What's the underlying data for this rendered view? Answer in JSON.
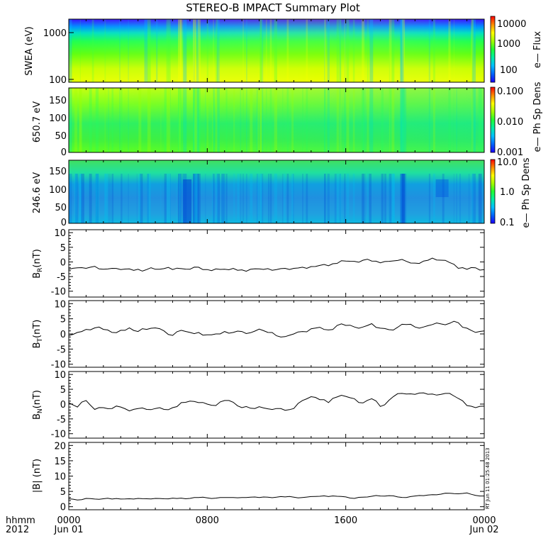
{
  "title": "STEREO-B IMPACT Summary Plot",
  "time_axis": {
    "corner_label_top": "hhmm",
    "corner_label_bottom": "2012",
    "ticks": [
      {
        "t": 0,
        "top": "0000",
        "bottom": "Jun 01"
      },
      {
        "t": 8,
        "top": "0800",
        "bottom": ""
      },
      {
        "t": 16,
        "top": "1600",
        "bottom": ""
      },
      {
        "t": 24,
        "top": "0000",
        "bottom": "Jun 02"
      }
    ],
    "range_hours": [
      0,
      24
    ]
  },
  "timestamp": "RT Jun 11 01:25:48 2013",
  "spectrograms": [
    {
      "id": "swea",
      "ylabel": "SWEA (eV)",
      "yticks": [
        "1000",
        "100"
      ],
      "cbar_label": "e— Flux",
      "cbar_ticks": [
        "10000",
        "1000",
        "100"
      ]
    },
    {
      "id": "pad650",
      "ylabel": "650.7 eV",
      "yticks": [
        "150",
        "100",
        "50",
        "0"
      ],
      "cbar_label": "e— Ph Sp Dens",
      "cbar_ticks": [
        "0.100",
        "0.010",
        "0.001"
      ]
    },
    {
      "id": "pad246",
      "ylabel": "246.6 eV",
      "yticks": [
        "150",
        "100",
        "50",
        "0"
      ],
      "cbar_label": "e— Ph Sp Dens",
      "cbar_ticks": [
        "10.0",
        "1.0",
        "0.1"
      ]
    }
  ],
  "colors": {
    "cbar_stops": [
      "#1a00ff",
      "#0080ff",
      "#00e0e0",
      "#00ff80",
      "#40ff00",
      "#c0ff00",
      "#ffff00",
      "#ffa000",
      "#ff0000"
    ]
  },
  "chart_data": [
    {
      "type": "line",
      "id": "br",
      "ylabel_main": "B",
      "ylabel_sub": "R",
      "ylabel_unit": "(nT)",
      "yticks": [
        "10",
        "5",
        "0",
        "-5",
        "-10"
      ],
      "ylim": [
        -12,
        11
      ],
      "x_hours": [
        0,
        0.5,
        1,
        1.5,
        2,
        2.5,
        3,
        3.5,
        4,
        4.5,
        5,
        5.5,
        6,
        6.5,
        7,
        7.5,
        8,
        8.5,
        9,
        9.5,
        10,
        10.5,
        11,
        11.5,
        12,
        12.5,
        13,
        13.5,
        14,
        14.5,
        15,
        15.5,
        16,
        16.5,
        17,
        17.5,
        18,
        18.5,
        19,
        19.5,
        20,
        20.5,
        21,
        21.5,
        22,
        22.5,
        23,
        23.5,
        24
      ],
      "values": [
        -2.5,
        -2,
        -2.2,
        -1.5,
        -2.5,
        -2.2,
        -2.6,
        -2.4,
        -2.5,
        -2.6,
        -2.5,
        -2.3,
        -2.6,
        -2.3,
        -2.5,
        -1.8,
        -2.6,
        -2.4,
        -2.5,
        -2.2,
        -2.7,
        -2.5,
        -2.4,
        -2.3,
        -2.6,
        -2.2,
        -2.2,
        -1.8,
        -1.6,
        -1.2,
        -1.3,
        -0.5,
        0.3,
        0.2,
        0.6,
        0.3,
        -0.3,
        0.2,
        0.5,
        0.2,
        -0.4,
        0.3,
        1.3,
        0.6,
        -0.2,
        -2.2,
        -2.5,
        -2,
        -2.6
      ]
    },
    {
      "type": "line",
      "id": "bt",
      "ylabel_main": "B",
      "ylabel_sub": "T",
      "ylabel_unit": "(nT)",
      "yticks": [
        "10",
        "5",
        "0",
        "-5",
        "-10"
      ],
      "ylim": [
        -11,
        11
      ],
      "x_hours": [
        0,
        0.5,
        1,
        1.5,
        2,
        2.5,
        3,
        3.5,
        4,
        4.5,
        5,
        5.5,
        6,
        6.5,
        7,
        7.5,
        8,
        8.5,
        9,
        9.5,
        10,
        10.5,
        11,
        11.5,
        12,
        12.5,
        13,
        13.5,
        14,
        14.5,
        15,
        15.5,
        16,
        16.5,
        17,
        17.5,
        18,
        18.5,
        19,
        19.5,
        20,
        20.5,
        21,
        21.5,
        22,
        22.5,
        23,
        23.5,
        24
      ],
      "values": [
        -0.5,
        0.5,
        1.5,
        2,
        1.5,
        0.5,
        1.2,
        2,
        0.8,
        1.5,
        2,
        1,
        -0.5,
        1.2,
        0.5,
        0.5,
        -0.3,
        0,
        0.8,
        0.5,
        0.8,
        0.4,
        1.6,
        0.5,
        -0.6,
        -0.9,
        0,
        0.8,
        1.7,
        2.2,
        1.3,
        2.8,
        2.8,
        2.3,
        2.3,
        3.4,
        1.9,
        1.4,
        2.2,
        3.1,
        2.3,
        2.3,
        3.1,
        3.3,
        3.5,
        3.7,
        1.9,
        0.5,
        1.0
      ]
    },
    {
      "type": "line",
      "id": "bn",
      "ylabel_main": "B",
      "ylabel_sub": "N",
      "ylabel_unit": "(nT)",
      "yticks": [
        "10",
        "5",
        "0",
        "-5",
        "-10"
      ],
      "ylim": [
        -11.5,
        11
      ],
      "x_hours": [
        0,
        0.5,
        1,
        1.5,
        2,
        2.5,
        3,
        3.5,
        4,
        4.5,
        5,
        5.5,
        6,
        6.5,
        7,
        7.5,
        8,
        8.5,
        9,
        9.5,
        10,
        10.5,
        11,
        11.5,
        12,
        12.5,
        13,
        13.5,
        14,
        14.5,
        15,
        15.5,
        16,
        16.5,
        17,
        17.5,
        18,
        18.5,
        19,
        19.5,
        20,
        20.5,
        21,
        21.5,
        22,
        22.5,
        23,
        23.5,
        24
      ],
      "values": [
        0.5,
        -1,
        1.2,
        -1.8,
        -1.2,
        -1.5,
        -1,
        -2.3,
        -1.5,
        -1.8,
        -1.5,
        -1.8,
        -1.2,
        0.5,
        1,
        0.5,
        0,
        -0.5,
        1.2,
        0.6,
        -1.2,
        -1.4,
        -0.9,
        -1.6,
        -1.5,
        -2.1,
        -1.5,
        1.2,
        2.5,
        1.5,
        0.5,
        2.4,
        2.6,
        1.8,
        0.4,
        1.8,
        -0.8,
        1.3,
        3.5,
        3.4,
        3.3,
        3.8,
        3.4,
        3.3,
        3.6,
        1.9,
        -0.5,
        -1.2,
        -0.7
      ]
    },
    {
      "type": "line",
      "id": "bmag",
      "ylabel_main": "|B|",
      "ylabel_sub": "",
      "ylabel_unit": "(nT)",
      "yticks": [
        "20",
        "15",
        "10",
        "5",
        "0"
      ],
      "ylim": [
        -1,
        21
      ],
      "x_hours": [
        0,
        0.5,
        1,
        1.5,
        2,
        2.5,
        3,
        3.5,
        4,
        4.5,
        5,
        5.5,
        6,
        6.5,
        7,
        7.5,
        8,
        8.5,
        9,
        9.5,
        10,
        10.5,
        11,
        11.5,
        12,
        12.5,
        13,
        13.5,
        14,
        14.5,
        15,
        15.5,
        16,
        16.5,
        17,
        17.5,
        18,
        18.5,
        19,
        19.5,
        20,
        20.5,
        21,
        21.5,
        22,
        22.5,
        23,
        23.5,
        24
      ],
      "values": [
        2.6,
        2.2,
        2.7,
        2.5,
        2.6,
        2.5,
        2.5,
        2.6,
        2.7,
        2.6,
        2.7,
        2.6,
        2.8,
        2.8,
        2.7,
        3.0,
        2.9,
        2.8,
        3.0,
        3.0,
        3.0,
        3.1,
        3.0,
        3.1,
        3.1,
        3.2,
        3.1,
        3.0,
        3.3,
        3.4,
        3.3,
        3.4,
        3.2,
        2.7,
        3.1,
        3.4,
        3.5,
        3.6,
        3.2,
        3.0,
        3.5,
        3.6,
        3.9,
        4.1,
        4.4,
        4.2,
        4.5,
        3.7,
        3.5
      ]
    }
  ]
}
